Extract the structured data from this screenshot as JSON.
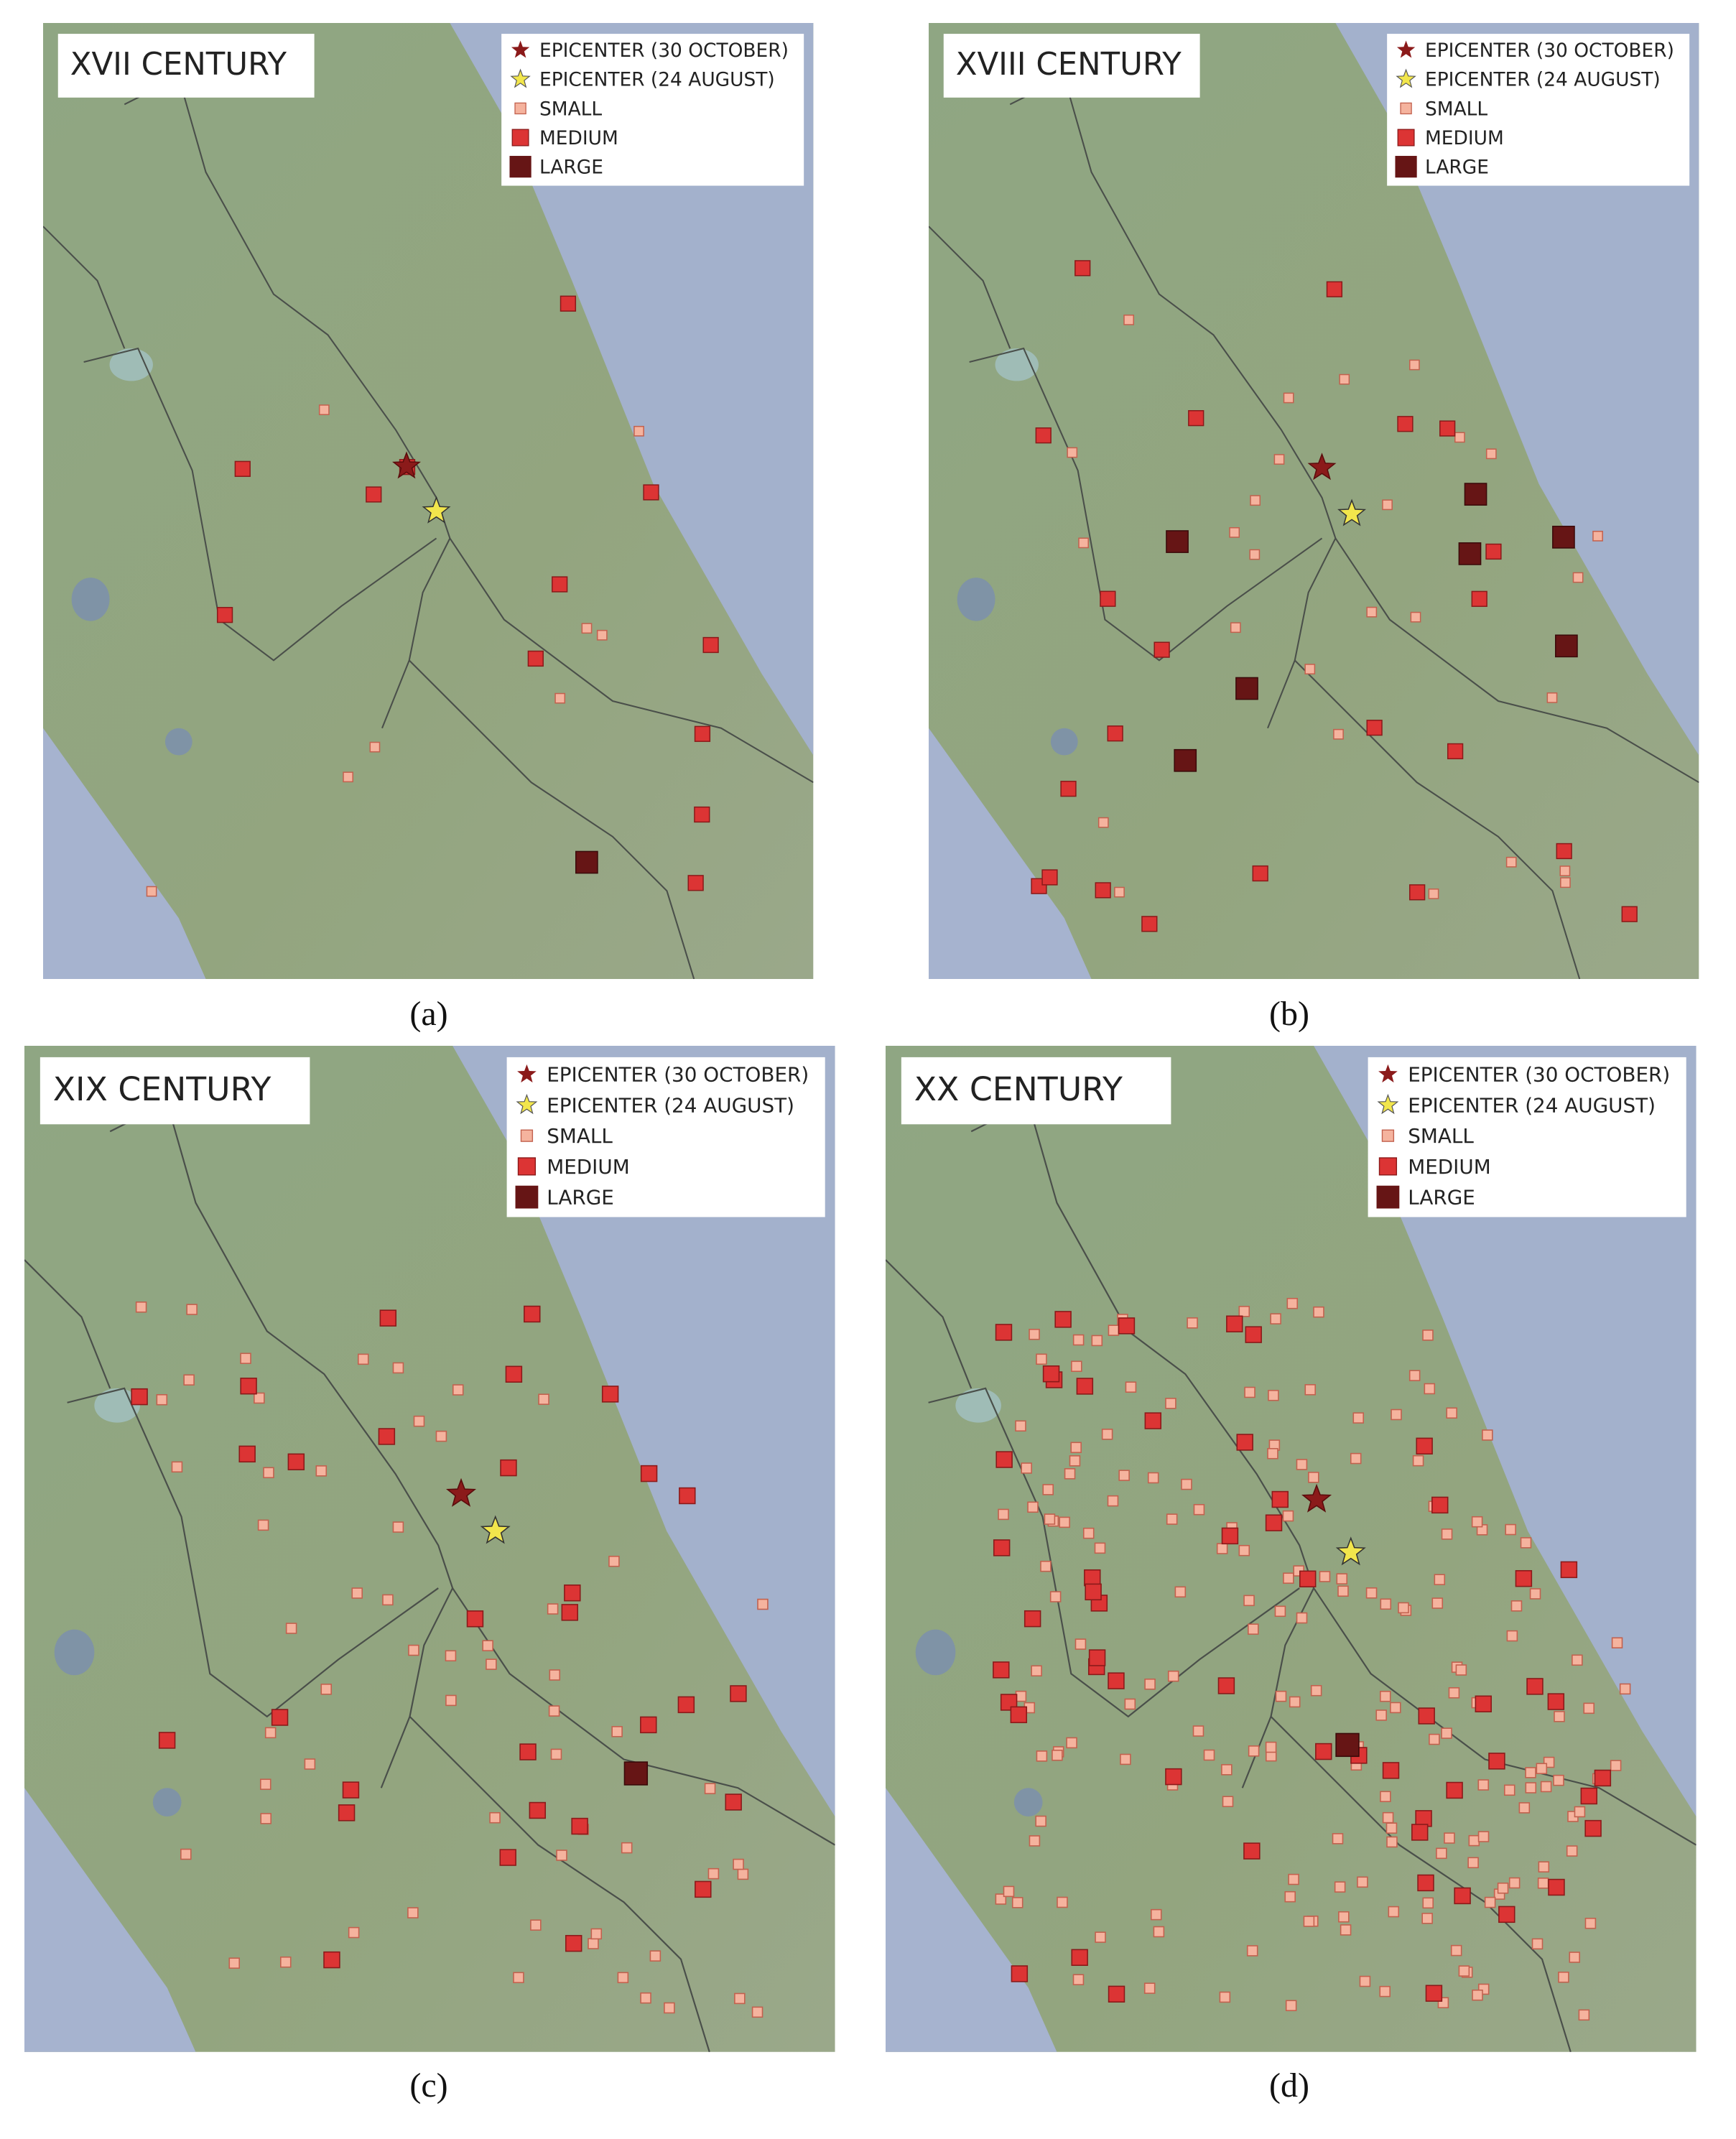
{
  "panels": [
    {
      "title": "XVII CENTURY",
      "caption": "(a)",
      "legend": [
        "EPICENTER (30 OCTOBER)",
        "EPICENTER (24 AUGUST)",
        "SMALL",
        "MEDIUM",
        "LARGE"
      ]
    },
    {
      "title": "XVIII CENTURY",
      "caption": "(b)",
      "legend": [
        "EPICENTER (30 OCTOBER)",
        "EPICENTER (24 AUGUST)",
        "SMALL",
        "MEDIUM",
        "LARGE"
      ]
    },
    {
      "title": "XIX CENTURY",
      "caption": "(c)",
      "legend": [
        "EPICENTER (30 OCTOBER)",
        "EPICENTER (24 AUGUST)",
        "SMALL",
        "MEDIUM",
        "LARGE"
      ]
    },
    {
      "title": "XX CENTURY",
      "caption": "(d)",
      "legend": [
        "EPICENTER (30 OCTOBER)",
        "EPICENTER (24 AUGUST)",
        "SMALL",
        "MEDIUM",
        "LARGE"
      ]
    }
  ]
}
